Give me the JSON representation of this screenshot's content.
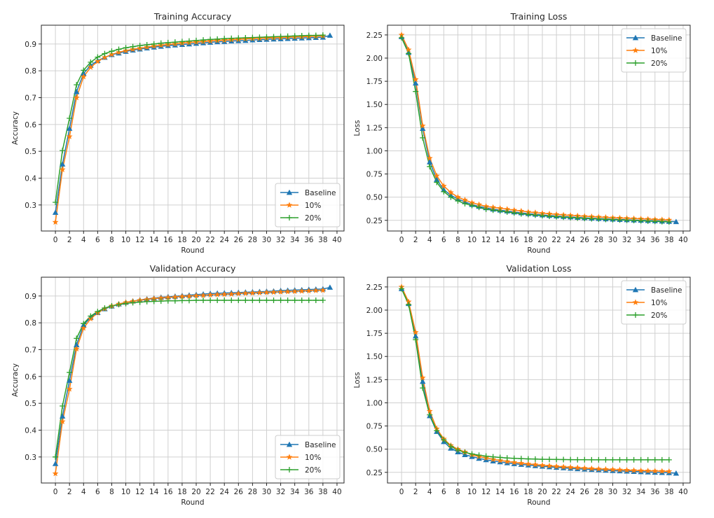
{
  "chart_data": [
    {
      "type": "line",
      "title": "Training Accuracy",
      "xlabel": "Round",
      "ylabel": "Accuracy",
      "xlim": [
        -2,
        41
      ],
      "ylim": [
        0.203,
        0.97
      ],
      "xticks": [
        0,
        2,
        4,
        6,
        8,
        10,
        12,
        14,
        16,
        18,
        20,
        22,
        24,
        26,
        28,
        30,
        32,
        34,
        36,
        38,
        40
      ],
      "yticks": [
        0.3,
        0.4,
        0.5,
        0.6,
        0.7,
        0.8,
        0.9
      ],
      "ytick_labels": [
        "0.3",
        "0.4",
        "0.5",
        "0.6",
        "0.7",
        "0.8",
        "0.9"
      ],
      "grid": true,
      "legend": "lower-right",
      "series": [
        {
          "name": "Baseline",
          "color": "#1f77b4",
          "marker": "triangle",
          "values": [
            0.272,
            0.452,
            0.585,
            0.722,
            0.79,
            0.82,
            0.838,
            0.85,
            0.86,
            0.866,
            0.872,
            0.877,
            0.881,
            0.885,
            0.888,
            0.891,
            0.894,
            0.896,
            0.898,
            0.9,
            0.902,
            0.904,
            0.906,
            0.908,
            0.909,
            0.911,
            0.912,
            0.913,
            0.915,
            0.916,
            0.917,
            0.918,
            0.919,
            0.92,
            0.921,
            0.922,
            0.923,
            0.924,
            0.925,
            0.932
          ]
        },
        {
          "name": "10%",
          "color": "#ff7f0e",
          "marker": "star",
          "values": [
            0.236,
            0.432,
            0.555,
            0.7,
            0.778,
            0.813,
            0.835,
            0.85,
            0.861,
            0.869,
            0.875,
            0.88,
            0.884,
            0.888,
            0.892,
            0.895,
            0.898,
            0.9,
            0.903,
            0.905,
            0.907,
            0.909,
            0.911,
            0.913,
            0.914,
            0.916,
            0.917,
            0.919,
            0.92,
            0.921,
            0.922,
            0.923,
            0.924,
            0.925,
            0.926,
            0.927,
            0.928,
            0.929,
            0.93
          ]
        },
        {
          "name": "20%",
          "color": "#2ca02c",
          "marker": "plus",
          "values": [
            0.31,
            0.503,
            0.623,
            0.748,
            0.802,
            0.832,
            0.851,
            0.864,
            0.873,
            0.88,
            0.886,
            0.89,
            0.894,
            0.897,
            0.9,
            0.903,
            0.905,
            0.907,
            0.909,
            0.911,
            0.913,
            0.915,
            0.917,
            0.918,
            0.92,
            0.921,
            0.922,
            0.923,
            0.924,
            0.925,
            0.926,
            0.927,
            0.928,
            0.929,
            0.93,
            0.931,
            0.932,
            0.932,
            0.933
          ]
        }
      ]
    },
    {
      "type": "line",
      "title": "Training Loss",
      "xlabel": "Round",
      "ylabel": "Loss",
      "xlim": [
        -2,
        41
      ],
      "ylim": [
        0.135,
        2.355
      ],
      "xticks": [
        0,
        2,
        4,
        6,
        8,
        10,
        12,
        14,
        16,
        18,
        20,
        22,
        24,
        26,
        28,
        30,
        32,
        34,
        36,
        38,
        40
      ],
      "yticks": [
        0.25,
        0.5,
        0.75,
        1.0,
        1.25,
        1.5,
        1.75,
        2.0,
        2.25
      ],
      "ytick_labels": [
        "0.25",
        "0.50",
        "0.75",
        "1.00",
        "1.25",
        "1.50",
        "1.75",
        "2.00",
        "2.25"
      ],
      "grid": true,
      "legend": "upper-right",
      "series": [
        {
          "name": "Baseline",
          "color": "#1f77b4",
          "marker": "triangle",
          "values": [
            2.23,
            2.06,
            1.73,
            1.24,
            0.88,
            0.69,
            0.58,
            0.52,
            0.48,
            0.45,
            0.42,
            0.4,
            0.385,
            0.37,
            0.36,
            0.35,
            0.34,
            0.33,
            0.322,
            0.315,
            0.308,
            0.302,
            0.296,
            0.291,
            0.286,
            0.281,
            0.277,
            0.273,
            0.269,
            0.265,
            0.262,
            0.259,
            0.256,
            0.253,
            0.25,
            0.247,
            0.244,
            0.241,
            0.238,
            0.235
          ]
        },
        {
          "name": "10%",
          "color": "#ff7f0e",
          "marker": "star",
          "values": [
            2.25,
            2.09,
            1.77,
            1.27,
            0.92,
            0.73,
            0.62,
            0.55,
            0.5,
            0.47,
            0.44,
            0.42,
            0.4,
            0.39,
            0.38,
            0.37,
            0.36,
            0.35,
            0.34,
            0.333,
            0.326,
            0.32,
            0.314,
            0.308,
            0.303,
            0.298,
            0.294,
            0.29,
            0.286,
            0.282,
            0.278,
            0.275,
            0.272,
            0.269,
            0.266,
            0.263,
            0.26,
            0.257,
            0.254
          ]
        },
        {
          "name": "20%",
          "color": "#2ca02c",
          "marker": "plus",
          "values": [
            2.22,
            2.05,
            1.64,
            1.14,
            0.83,
            0.66,
            0.56,
            0.5,
            0.46,
            0.43,
            0.41,
            0.39,
            0.37,
            0.36,
            0.35,
            0.34,
            0.33,
            0.32,
            0.313,
            0.306,
            0.3,
            0.294,
            0.289,
            0.284,
            0.279,
            0.275,
            0.271,
            0.267,
            0.264,
            0.26,
            0.257,
            0.254,
            0.251,
            0.248,
            0.245,
            0.242,
            0.239,
            0.236,
            0.233
          ]
        }
      ]
    },
    {
      "type": "line",
      "title": "Validation Accuracy",
      "xlabel": "Round",
      "ylabel": "Accuracy",
      "xlim": [
        -2,
        41
      ],
      "ylim": [
        0.203,
        0.97
      ],
      "xticks": [
        0,
        2,
        4,
        6,
        8,
        10,
        12,
        14,
        16,
        18,
        20,
        22,
        24,
        26,
        28,
        30,
        32,
        34,
        36,
        38,
        40
      ],
      "yticks": [
        0.3,
        0.4,
        0.5,
        0.6,
        0.7,
        0.8,
        0.9
      ],
      "ytick_labels": [
        "0.3",
        "0.4",
        "0.5",
        "0.6",
        "0.7",
        "0.8",
        "0.9"
      ],
      "grid": true,
      "legend": "lower-right",
      "series": [
        {
          "name": "Baseline",
          "color": "#1f77b4",
          "marker": "triangle",
          "values": [
            0.275,
            0.452,
            0.585,
            0.718,
            0.792,
            0.82,
            0.838,
            0.852,
            0.862,
            0.87,
            0.876,
            0.881,
            0.885,
            0.889,
            0.892,
            0.895,
            0.897,
            0.899,
            0.901,
            0.903,
            0.905,
            0.907,
            0.909,
            0.91,
            0.911,
            0.912,
            0.913,
            0.914,
            0.915,
            0.916,
            0.917,
            0.918,
            0.92,
            0.921,
            0.922,
            0.923,
            0.924,
            0.925,
            0.926,
            0.932
          ]
        },
        {
          "name": "10%",
          "color": "#ff7f0e",
          "marker": "star",
          "values": [
            0.238,
            0.432,
            0.553,
            0.703,
            0.78,
            0.815,
            0.837,
            0.853,
            0.863,
            0.87,
            0.876,
            0.88,
            0.884,
            0.887,
            0.89,
            0.892,
            0.894,
            0.896,
            0.898,
            0.899,
            0.901,
            0.902,
            0.904,
            0.905,
            0.906,
            0.907,
            0.909,
            0.91,
            0.911,
            0.912,
            0.913,
            0.914,
            0.915,
            0.916,
            0.917,
            0.918,
            0.919,
            0.92,
            0.921
          ]
        },
        {
          "name": "20%",
          "color": "#2ca02c",
          "marker": "plus",
          "values": [
            0.3,
            0.49,
            0.615,
            0.742,
            0.797,
            0.825,
            0.842,
            0.855,
            0.863,
            0.868,
            0.872,
            0.875,
            0.877,
            0.879,
            0.88,
            0.881,
            0.882,
            0.882,
            0.883,
            0.883,
            0.884,
            0.884,
            0.884,
            0.884,
            0.884,
            0.884,
            0.884,
            0.884,
            0.884,
            0.884,
            0.884,
            0.884,
            0.884,
            0.884,
            0.884,
            0.884,
            0.884,
            0.884,
            0.884
          ]
        }
      ]
    },
    {
      "type": "line",
      "title": "Validation Loss",
      "xlabel": "Round",
      "ylabel": "Loss",
      "xlim": [
        -2,
        41
      ],
      "ylim": [
        0.135,
        2.355
      ],
      "xticks": [
        0,
        2,
        4,
        6,
        8,
        10,
        12,
        14,
        16,
        18,
        20,
        22,
        24,
        26,
        28,
        30,
        32,
        34,
        36,
        38,
        40
      ],
      "yticks": [
        0.25,
        0.5,
        0.75,
        1.0,
        1.25,
        1.5,
        1.75,
        2.0,
        2.25
      ],
      "ytick_labels": [
        "0.25",
        "0.50",
        "0.75",
        "1.00",
        "1.25",
        "1.50",
        "1.75",
        "2.00",
        "2.25"
      ],
      "grid": true,
      "legend": "upper-right",
      "series": [
        {
          "name": "Baseline",
          "color": "#1f77b4",
          "marker": "triangle",
          "values": [
            2.23,
            2.07,
            1.72,
            1.23,
            0.86,
            0.69,
            0.58,
            0.51,
            0.47,
            0.44,
            0.42,
            0.4,
            0.385,
            0.372,
            0.362,
            0.352,
            0.343,
            0.335,
            0.328,
            0.321,
            0.315,
            0.309,
            0.303,
            0.298,
            0.293,
            0.288,
            0.284,
            0.28,
            0.276,
            0.272,
            0.268,
            0.265,
            0.262,
            0.259,
            0.256,
            0.253,
            0.25,
            0.247,
            0.245,
            0.24
          ]
        },
        {
          "name": "10%",
          "color": "#ff7f0e",
          "marker": "star",
          "values": [
            2.25,
            2.09,
            1.76,
            1.27,
            0.91,
            0.72,
            0.61,
            0.54,
            0.5,
            0.47,
            0.44,
            0.42,
            0.405,
            0.39,
            0.378,
            0.367,
            0.357,
            0.348,
            0.34,
            0.333,
            0.326,
            0.32,
            0.314,
            0.309,
            0.304,
            0.299,
            0.295,
            0.291,
            0.287,
            0.283,
            0.28,
            0.277,
            0.274,
            0.271,
            0.268,
            0.266,
            0.264,
            0.262,
            0.26
          ]
        },
        {
          "name": "20%",
          "color": "#2ca02c",
          "marker": "plus",
          "values": [
            2.23,
            2.06,
            1.68,
            1.16,
            0.87,
            0.7,
            0.6,
            0.53,
            0.49,
            0.465,
            0.448,
            0.435,
            0.425,
            0.417,
            0.411,
            0.405,
            0.401,
            0.398,
            0.395,
            0.393,
            0.391,
            0.39,
            0.389,
            0.388,
            0.387,
            0.386,
            0.386,
            0.385,
            0.385,
            0.385,
            0.385,
            0.385,
            0.385,
            0.385,
            0.385,
            0.385,
            0.385,
            0.385,
            0.385
          ]
        }
      ]
    }
  ]
}
